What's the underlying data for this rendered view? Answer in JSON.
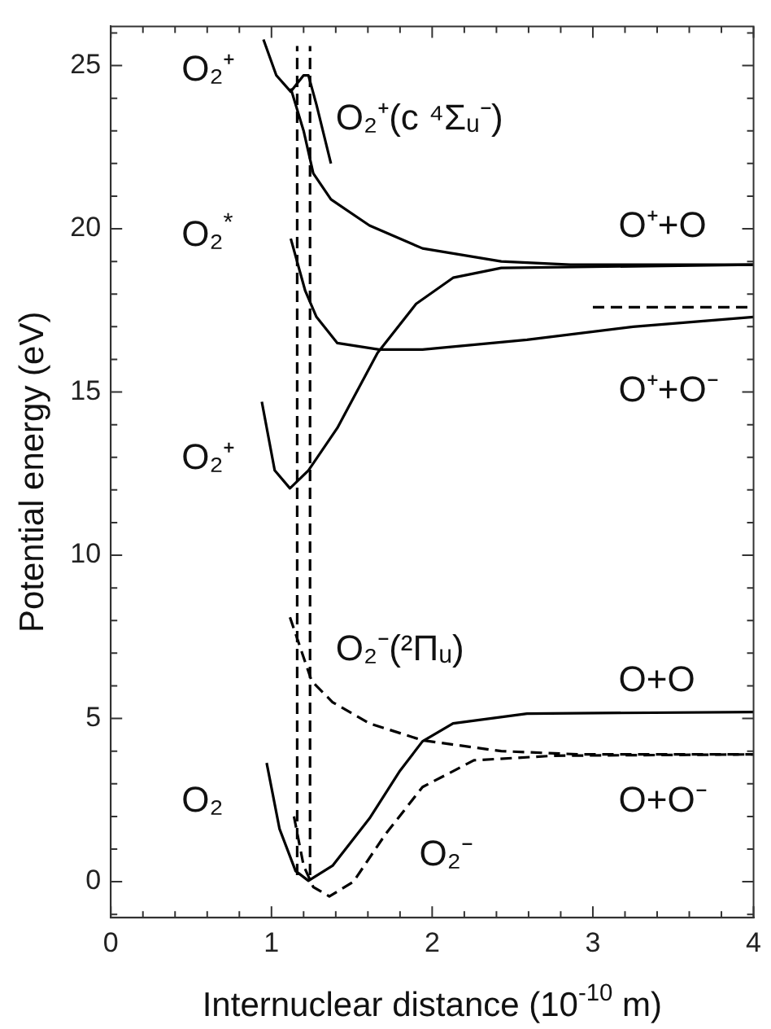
{
  "chart_data": {
    "type": "line",
    "xlabel": "Internuclear distance (10$^{-10}$ m)",
    "ylabel": "Potential energy (eV)",
    "xlim": [
      0,
      4
    ],
    "ylim": [
      -1.1,
      26.2
    ],
    "xticks": [
      0,
      {
        "value": 0.2,
        "label": null
      },
      {
        "value": 0.4,
        "label": null
      },
      {
        "value": 0.6,
        "label": null
      },
      {
        "value": 0.8,
        "label": null
      },
      1,
      {
        "value": 1.2,
        "label": null
      },
      {
        "value": 1.4,
        "label": null
      },
      {
        "value": 1.6,
        "label": null
      },
      {
        "value": 1.8,
        "label": null
      },
      2,
      {
        "value": 2.2,
        "label": null
      },
      {
        "value": 2.4,
        "label": null
      },
      {
        "value": 2.6,
        "label": null
      },
      {
        "value": 2.8,
        "label": null
      },
      3,
      {
        "value": 3.2,
        "label": null
      },
      {
        "value": 3.4,
        "label": null
      },
      {
        "value": 3.6,
        "label": null
      },
      {
        "value": 3.8,
        "label": null
      },
      4
    ],
    "yticks": [
      {
        "value": -1,
        "label": null
      },
      0,
      {
        "value": 1,
        "label": null
      },
      {
        "value": 2,
        "label": null
      },
      {
        "value": 3,
        "label": null
      },
      {
        "value": 4,
        "label": null
      },
      5,
      {
        "value": 6,
        "label": null
      },
      {
        "value": 7,
        "label": null
      },
      {
        "value": 8,
        "label": null
      },
      {
        "value": 9,
        "label": null
      },
      10,
      {
        "value": 11,
        "label": null
      },
      {
        "value": 12,
        "label": null
      },
      {
        "value": 13,
        "label": null
      },
      {
        "value": 14,
        "label": null
      },
      15,
      {
        "value": 16,
        "label": null
      },
      {
        "value": 17,
        "label": null
      },
      {
        "value": 18,
        "label": null
      },
      {
        "value": 19,
        "label": null
      },
      20,
      {
        "value": 21,
        "label": null
      },
      {
        "value": 22,
        "label": null
      },
      {
        "value": 23,
        "label": null
      },
      {
        "value": 24,
        "label": null
      },
      25,
      {
        "value": 26,
        "label": null
      }
    ],
    "grid": false,
    "legend": false,
    "marker": "none",
    "series": [
      {
        "color": "#000000",
        "line_style": "solid",
        "x": [
          0.95,
          1.03,
          1.12,
          1.2,
          1.23,
          1.28,
          1.37
        ],
        "values": [
          25.8,
          24.7,
          24.2,
          24.7,
          24.7,
          23.8,
          22.0
        ]
      },
      {
        "color": "#000000",
        "line_style": "solid",
        "x": [
          1.12,
          1.2,
          1.26,
          1.37,
          1.61,
          1.94,
          2.43,
          2.86,
          4
        ],
        "values": [
          24.3,
          23.0,
          21.7,
          20.9,
          20.1,
          19.4,
          19.0,
          18.9,
          18.9
        ]
      },
      {
        "color": "#000000",
        "line_style": "solid",
        "x": [
          1.12,
          1.21,
          1.28,
          1.41,
          1.67,
          1.94,
          2.59,
          3.25,
          4
        ],
        "values": [
          19.7,
          18.1,
          17.3,
          16.5,
          16.3,
          16.3,
          16.6,
          17.0,
          17.3
        ]
      },
      {
        "color": "#000000",
        "line_style": "solid",
        "x": [
          0.94,
          1.02,
          1.115,
          1.23,
          1.41,
          1.66,
          1.9,
          2.13,
          2.43,
          4
        ],
        "values": [
          14.7,
          12.6,
          12.05,
          12.6,
          13.9,
          16.2,
          17.7,
          18.5,
          18.8,
          18.9
        ]
      },
      {
        "color": "#000000",
        "line_style": "dashed",
        "x": [
          3.0,
          4
        ],
        "values": [
          17.6,
          17.6
        ]
      },
      {
        "color": "#000000",
        "line_style": "dashed",
        "x": [
          1.16,
          1.16
        ],
        "values": [
          0.2,
          25.6
        ]
      },
      {
        "color": "#000000",
        "line_style": "dashed",
        "x": [
          1.24,
          1.24
        ],
        "values": [
          0.2,
          25.6
        ]
      },
      {
        "color": "#000000",
        "line_style": "solid",
        "x": [
          0.97,
          1.05,
          1.15,
          1.23,
          1.38,
          1.61,
          1.8,
          1.94,
          2.13,
          2.59,
          4
        ],
        "values": [
          3.64,
          1.62,
          0.33,
          0.03,
          0.49,
          1.94,
          3.4,
          4.3,
          4.85,
          5.15,
          5.2
        ]
      },
      {
        "color": "#000000",
        "line_style": "dashed",
        "x": [
          1.14,
          1.2,
          1.26,
          1.36,
          1.51,
          1.71,
          1.94,
          2.26,
          2.76,
          4
        ],
        "values": [
          2.0,
          0.49,
          -0.16,
          -0.45,
          0,
          1.46,
          2.9,
          3.72,
          3.86,
          3.9
        ]
      },
      {
        "color": "#000000",
        "line_style": "dashed",
        "x": [
          1.115,
          1.25,
          1.38,
          1.61,
          1.94,
          2.43,
          2.92,
          4
        ],
        "values": [
          8.1,
          6.15,
          5.5,
          4.85,
          4.33,
          4.0,
          3.9,
          3.9
        ]
      }
    ],
    "annotations": [
      "O₂⁺",
      "O₂⁺(c ⁴Σᵤ⁻)",
      "O₂$^{*}$",
      "O⁺+O",
      "O⁺+O⁻",
      "O₂⁺",
      "O₂⁻(²Πᵤ)",
      "O+O",
      "O₂",
      "O+O⁻",
      "O₂⁻"
    ]
  }
}
